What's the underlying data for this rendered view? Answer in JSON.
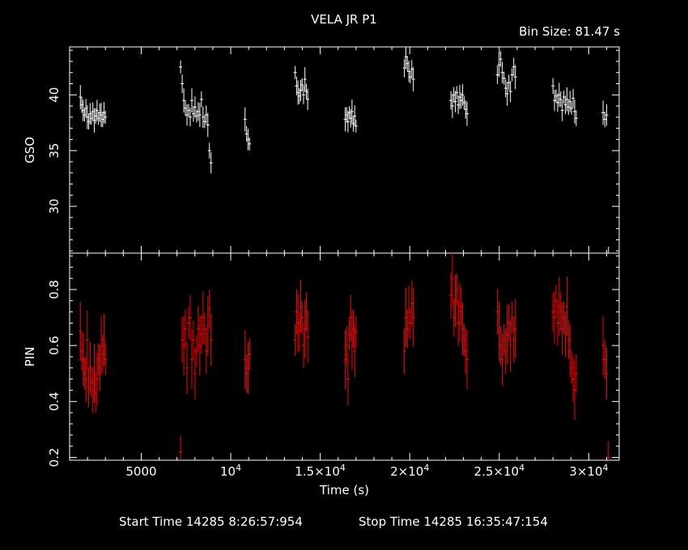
{
  "title": "VELA JR P1",
  "bin_size": "Bin Size: 81.47 s",
  "start_time": "Start Time 14285  8:26:57:954",
  "stop_time": "Stop Time 14285 16:35:47:154",
  "colors": {
    "background": "#000000",
    "gso": "#ffffff",
    "pin": "#ff0000",
    "axes": "#ffffff"
  },
  "chart_data": [
    {
      "type": "scatter",
      "title": "VELA JR P1",
      "ylabel": "GSO",
      "xlabel": "",
      "xlim": [
        1000,
        31700
      ],
      "ylim": [
        25.8,
        44.3
      ],
      "ytick_values": [
        30,
        35,
        40
      ],
      "ytick_labels": [
        "30",
        "35",
        "40"
      ],
      "grid": false,
      "error_bars": true,
      "color": "#ffffff",
      "segments": [
        {
          "x_start": 1600,
          "x_end": 3000,
          "values": [
            39.8,
            39.1,
            38.6,
            38.2,
            38.8,
            38.0,
            37.6,
            38.3,
            37.9,
            38.5,
            37.7,
            38.1,
            38.6,
            37.9,
            38.4,
            38.2,
            37.8,
            38.4,
            38.0
          ]
        },
        {
          "x_start": 7200,
          "x_end": 8900,
          "values": [
            42.5,
            41.0,
            39.5,
            38.8,
            38.2,
            38.6,
            38.0,
            39.5,
            38.3,
            38.9,
            38.1,
            38.5,
            38.2,
            39.6,
            38.0,
            37.6,
            38.2,
            37.3,
            35.0,
            33.9
          ]
        },
        {
          "x_start": 10800,
          "x_end": 11050,
          "values": [
            37.8,
            36.5,
            36.0,
            35.6
          ]
        },
        {
          "x_start": 13600,
          "x_end": 14300,
          "values": [
            42.0,
            40.8,
            40.2,
            39.9,
            40.4,
            40.9,
            40.0,
            41.4,
            40.3,
            39.6
          ]
        },
        {
          "x_start": 16400,
          "x_end": 17000,
          "values": [
            37.8,
            38.2,
            37.6,
            38.4,
            37.9,
            38.5,
            37.4,
            38.1,
            37.2
          ]
        },
        {
          "x_start": 19700,
          "x_end": 20200,
          "values": [
            42.4,
            43.4,
            42.8,
            42.1,
            41.6,
            42.3,
            41.4
          ]
        },
        {
          "x_start": 22300,
          "x_end": 23200,
          "values": [
            39.5,
            39.0,
            40.0,
            39.4,
            40.2,
            39.1,
            39.8,
            39.5,
            40.0,
            39.3,
            38.7,
            38.3
          ]
        },
        {
          "x_start": 24900,
          "x_end": 25900,
          "values": [
            41.8,
            42.7,
            43.2,
            42.0,
            41.5,
            40.6,
            40.1,
            41.1,
            40.3,
            41.8,
            42.5,
            41.6
          ]
        },
        {
          "x_start": 28000,
          "x_end": 29300,
          "values": [
            40.8,
            39.5,
            39.9,
            39.3,
            40.0,
            39.6,
            38.6,
            39.8,
            39.1,
            39.6,
            38.9,
            39.4,
            38.8,
            39.7,
            38.5,
            37.9
          ]
        },
        {
          "x_start": 30800,
          "x_end": 31100,
          "values": [
            38.4,
            37.8,
            38.2,
            25.8
          ]
        }
      ]
    },
    {
      "type": "scatter",
      "ylabel": "PIN",
      "xlabel": "Time (s)",
      "xlim": [
        1000,
        31700
      ],
      "ylim": [
        0.19,
        0.93
      ],
      "ytick_values": [
        0.2,
        0.4,
        0.6,
        0.8
      ],
      "ytick_labels": [
        "0.2",
        "0.4",
        "0.6",
        "0.8"
      ],
      "xtick_values": [
        5000,
        10000,
        15000,
        20000,
        25000,
        30000
      ],
      "xtick_labels": [
        {
          "base": "5000",
          "exp": ""
        },
        {
          "base": "10",
          "exp": "4"
        },
        {
          "base": "1.5×10",
          "exp": "4"
        },
        {
          "base": "2×10",
          "exp": "4"
        },
        {
          "base": "2.5×10",
          "exp": "4"
        },
        {
          "base": "3×10",
          "exp": "4"
        }
      ],
      "grid": false,
      "error_bars": true,
      "color": "#ff0000",
      "segments": [
        {
          "x_start": 1600,
          "x_end": 3000,
          "values": [
            0.65,
            0.58,
            0.55,
            0.5,
            0.48,
            0.62,
            0.45,
            0.52,
            0.47,
            0.44,
            0.5,
            0.43,
            0.48,
            0.55,
            0.52,
            0.6,
            0.57,
            0.62,
            0.55
          ]
        },
        {
          "x_start": 7200,
          "x_end": 8900,
          "values": [
            0.22,
            0.62,
            0.6,
            0.66,
            0.52,
            0.68,
            0.7,
            0.55,
            0.62,
            0.5,
            0.58,
            0.66,
            0.6,
            0.64,
            0.7,
            0.66,
            0.58,
            0.67,
            0.73,
            0.62
          ]
        },
        {
          "x_start": 10800,
          "x_end": 11050,
          "values": [
            0.55,
            0.5,
            0.52,
            0.57
          ]
        },
        {
          "x_start": 13600,
          "x_end": 14300,
          "values": [
            0.62,
            0.72,
            0.68,
            0.65,
            0.74,
            0.7,
            0.6,
            0.66,
            0.72,
            0.63
          ]
        },
        {
          "x_start": 16400,
          "x_end": 17000,
          "values": [
            0.55,
            0.6,
            0.48,
            0.64,
            0.7,
            0.62,
            0.66,
            0.58,
            0.65
          ]
        },
        {
          "x_start": 19700,
          "x_end": 20200,
          "values": [
            0.58,
            0.7,
            0.66,
            0.72,
            0.68,
            0.75,
            0.7
          ]
        },
        {
          "x_start": 22300,
          "x_end": 23200,
          "values": [
            0.78,
            0.84,
            0.7,
            0.76,
            0.8,
            0.68,
            0.72,
            0.74,
            0.66,
            0.62,
            0.58,
            0.55
          ]
        },
        {
          "x_start": 24900,
          "x_end": 25900,
          "values": [
            0.72,
            0.65,
            0.6,
            0.55,
            0.62,
            0.58,
            0.64,
            0.68,
            0.6,
            0.7,
            0.62,
            0.66
          ]
        },
        {
          "x_start": 28000,
          "x_end": 29300,
          "values": [
            0.72,
            0.7,
            0.76,
            0.68,
            0.74,
            0.72,
            0.66,
            0.7,
            0.64,
            0.74,
            0.62,
            0.58,
            0.52,
            0.48,
            0.44,
            0.5
          ]
        },
        {
          "x_start": 30800,
          "x_end": 31100,
          "values": [
            0.6,
            0.55,
            0.5,
            0.2
          ]
        }
      ]
    }
  ]
}
